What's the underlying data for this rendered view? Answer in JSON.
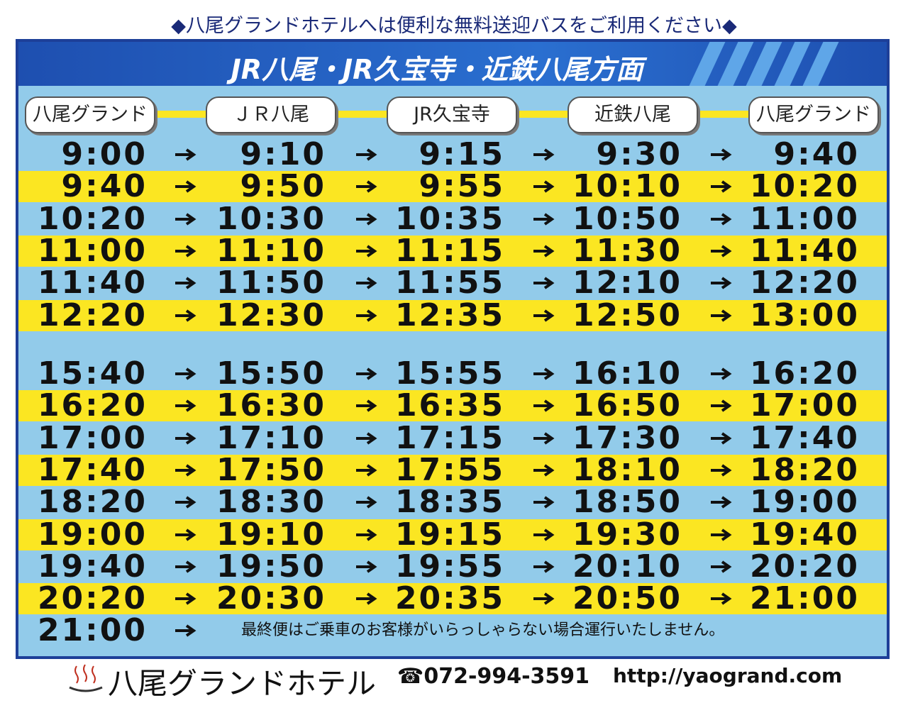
{
  "header": "◆八尾グランドホテルへは便利な無料送迎バスをご利用ください◆",
  "banner": "JR八尾・JR久宝寺・近鉄八尾方面",
  "columns": [
    "八尾グランド",
    "ＪＲ八尾",
    "JR久宝寺",
    "近鉄八尾",
    "八尾グランド"
  ],
  "blocks": [
    {
      "rows": [
        [
          "9:00",
          "9:10",
          "9:15",
          "9:30",
          "9:40"
        ],
        [
          "9:40",
          "9:50",
          "9:55",
          "10:10",
          "10:20"
        ],
        [
          "10:20",
          "10:30",
          "10:35",
          "10:50",
          "11:00"
        ],
        [
          "11:00",
          "11:10",
          "11:15",
          "11:30",
          "11:40"
        ],
        [
          "11:40",
          "11:50",
          "11:55",
          "12:10",
          "12:20"
        ],
        [
          "12:20",
          "12:30",
          "12:35",
          "12:50",
          "13:00"
        ]
      ]
    },
    {
      "rows": [
        [
          "15:40",
          "15:50",
          "15:55",
          "16:10",
          "16:20"
        ],
        [
          "16:20",
          "16:30",
          "16:35",
          "16:50",
          "17:00"
        ],
        [
          "17:00",
          "17:10",
          "17:15",
          "17:30",
          "17:40"
        ],
        [
          "17:40",
          "17:50",
          "17:55",
          "18:10",
          "18:20"
        ],
        [
          "18:20",
          "18:30",
          "18:35",
          "18:50",
          "19:00"
        ],
        [
          "19:00",
          "19:10",
          "19:15",
          "19:30",
          "19:40"
        ],
        [
          "19:40",
          "19:50",
          "19:55",
          "20:10",
          "20:20"
        ],
        [
          "20:20",
          "20:30",
          "20:35",
          "20:50",
          "21:00"
        ]
      ]
    }
  ],
  "last_row": {
    "time": "21:00",
    "note": "最終便はご乗車のお客様がいらっしゃらない場合運行いたしません。"
  },
  "footer": {
    "name": "八尾グランドホテル",
    "phone": "☎072-994-3591",
    "url": "http://yaogrand.com"
  }
}
